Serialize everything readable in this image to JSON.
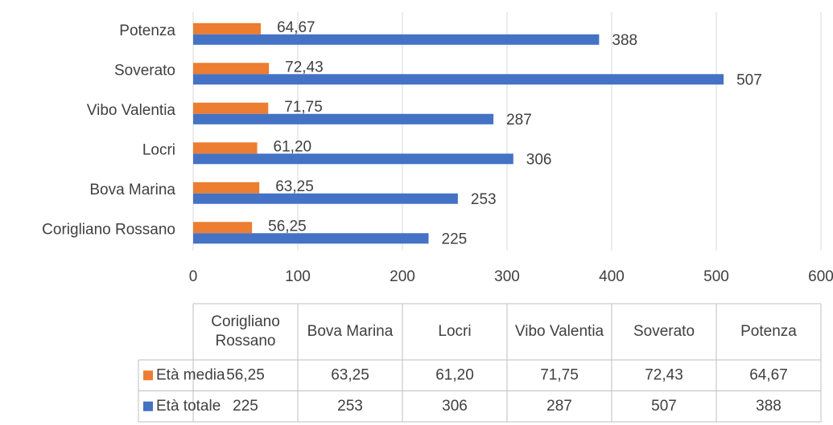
{
  "chart_data": {
    "type": "bar",
    "orientation": "horizontal",
    "categories": [
      "Corigliano Rossano",
      "Bova Marina",
      "Locri",
      "Vibo Valentia",
      "Soverato",
      "Potenza"
    ],
    "series": [
      {
        "name": "Età media",
        "color": "#ed7d31",
        "values": [
          56.25,
          63.25,
          61.2,
          71.75,
          72.43,
          64.67
        ],
        "value_labels": [
          "56,25",
          "63,25",
          "61,20",
          "71,75",
          "72,43",
          "64,67"
        ]
      },
      {
        "name": "Età totale",
        "color": "#4472c4",
        "values": [
          225,
          253,
          306,
          287,
          507,
          388
        ]
      }
    ],
    "xlim": [
      0,
      600
    ],
    "xticks": [
      0,
      100,
      200,
      300,
      400,
      500,
      600
    ],
    "grid": true,
    "data_table": true
  }
}
